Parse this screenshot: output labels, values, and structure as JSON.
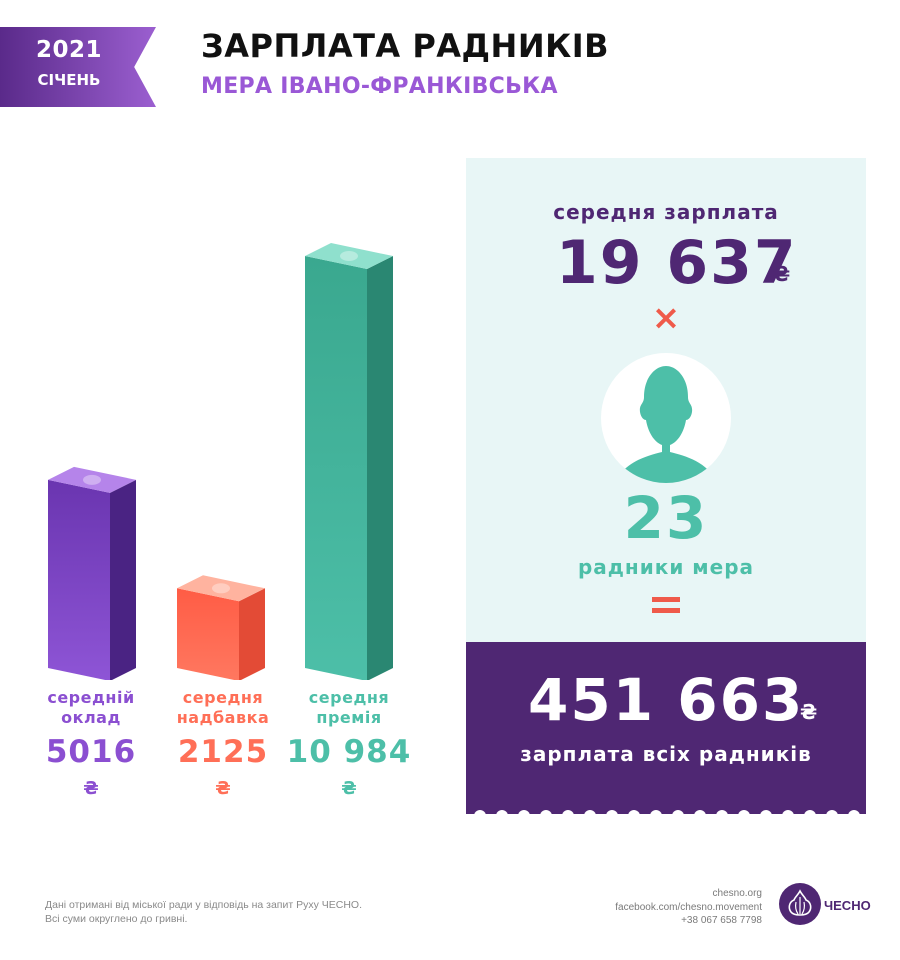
{
  "header": {
    "year": "2021",
    "month": "СІЧЕНЬ",
    "title": "ЗАРПЛАТА РАДНИКІВ",
    "subtitle": "МЕРА ІВАНО-ФРАНКІВСЬКА"
  },
  "colors": {
    "purple": "#8b4fd1",
    "coral": "#ff6f57",
    "teal": "#4dbfa8",
    "dark_purple": "#4f2773",
    "red": "#ef5a4a"
  },
  "chart_data": {
    "type": "bar",
    "categories": [
      "середній оклад",
      "середня надбавка",
      "середня премія"
    ],
    "category_lines": [
      [
        "середній",
        "оклад"
      ],
      [
        "середня",
        "надбавка"
      ],
      [
        "середня",
        "премія"
      ]
    ],
    "values": [
      5016,
      2125,
      10984
    ],
    "value_labels": [
      "5016",
      "2125",
      "10 984"
    ],
    "currency": "₴",
    "title": "",
    "xlabel": "",
    "ylabel": "",
    "ylim": [
      0,
      10984
    ],
    "grid": false,
    "legend": "none"
  },
  "summary": {
    "avg_label": "середня зарплата",
    "avg_value": "19 637",
    "currency": "₴",
    "times_symbol": "×",
    "count": "23",
    "count_label": "радники мера",
    "total_value": "451 663",
    "total_label": "зарплата всіх радників"
  },
  "footer": {
    "note_line1": "Дані отримані від міської ради у відповідь на запит Руху ЧЕСНО.",
    "note_line2": "Всі суми округлено до гривні.",
    "site": "chesno.org",
    "facebook": "facebook.com/chesno.movement",
    "phone": "+38 067 658 7798",
    "logo_text": "ЧЕСНО"
  }
}
